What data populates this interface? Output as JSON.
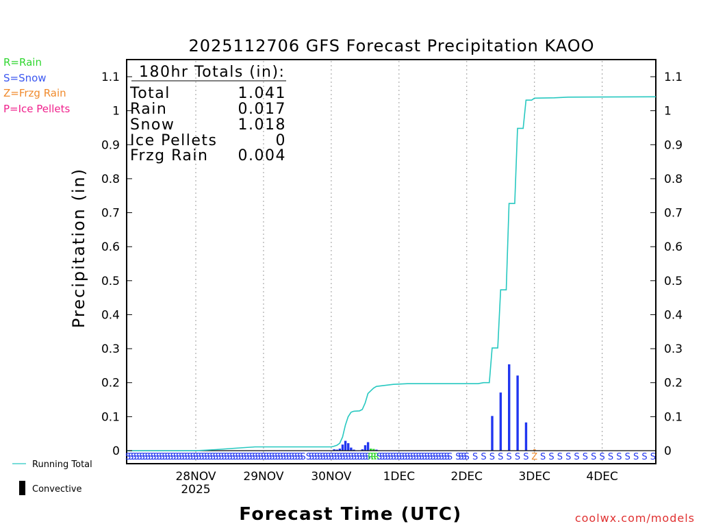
{
  "chart_data": {
    "type": "bar+line",
    "title": "2025112706 GFS Forecast Precipitation KAOO",
    "xlabel": "Forecast Time (UTC)",
    "ylabel": "Precipitation (in)",
    "ylim": [
      0,
      1.1
    ],
    "yticks": [
      0,
      0.1,
      0.2,
      0.3,
      0.4,
      0.5,
      0.6,
      0.7,
      0.8,
      0.9,
      1,
      1.1
    ],
    "ytick_labels": [
      "0",
      "0.1",
      "0.2",
      "0.3",
      "0.4",
      "0.5",
      "0.6",
      "0.7",
      "0.8",
      "0.9",
      "1",
      "1.1"
    ],
    "xlim_hours": [
      -6.5,
      181
    ],
    "grid_lines_hours": [
      18,
      42,
      66,
      90,
      114,
      138,
      162
    ],
    "x_ticks": [
      {
        "hour": 18,
        "label": "28NOV",
        "sublabel": "2025"
      },
      {
        "hour": 42,
        "label": "29NOV"
      },
      {
        "hour": 66,
        "label": "30NOV"
      },
      {
        "hour": 90,
        "label": "1DEC"
      },
      {
        "hour": 114,
        "label": "2DEC"
      },
      {
        "hour": 138,
        "label": "3DEC"
      },
      {
        "hour": 162,
        "label": "4DEC"
      }
    ],
    "bars": [
      {
        "hour": 67,
        "value": 0.004,
        "type": "snow"
      },
      {
        "hour": 68,
        "value": 0.003,
        "type": "snow"
      },
      {
        "hour": 69,
        "value": 0.006,
        "type": "snow"
      },
      {
        "hour": 70,
        "value": 0.018,
        "type": "snow"
      },
      {
        "hour": 71,
        "value": 0.029,
        "type": "snow"
      },
      {
        "hour": 72,
        "value": 0.022,
        "type": "snow"
      },
      {
        "hour": 73,
        "value": 0.009,
        "type": "snow"
      },
      {
        "hour": 74,
        "value": 0.003,
        "type": "snow"
      },
      {
        "hour": 77,
        "value": 0.004,
        "type": "snow"
      },
      {
        "hour": 78,
        "value": 0.016,
        "type": "snow"
      },
      {
        "hour": 79,
        "value": 0.025,
        "type": "snow"
      },
      {
        "hour": 80,
        "value": 0.006,
        "type": "rain"
      },
      {
        "hour": 81,
        "value": 0.005,
        "type": "rain"
      },
      {
        "hour": 82,
        "value": 0.003,
        "type": "snow"
      },
      {
        "hour": 123,
        "value": 0.102,
        "type": "snow"
      },
      {
        "hour": 126,
        "value": 0.171,
        "type": "snow"
      },
      {
        "hour": 129,
        "value": 0.254,
        "type": "snow"
      },
      {
        "hour": 132,
        "value": 0.221,
        "type": "snow"
      },
      {
        "hour": 135,
        "value": 0.083,
        "type": "snow"
      },
      {
        "hour": 138,
        "value": 0.004,
        "type": "frzg"
      }
    ],
    "running_total": [
      [
        -6.5,
        0
      ],
      [
        18,
        0
      ],
      [
        25,
        0.003
      ],
      [
        30,
        0.006
      ],
      [
        39,
        0.011
      ],
      [
        66,
        0.011
      ],
      [
        67,
        0.013
      ],
      [
        68,
        0.016
      ],
      [
        69,
        0.022
      ],
      [
        70,
        0.04
      ],
      [
        71,
        0.075
      ],
      [
        72,
        0.1
      ],
      [
        73,
        0.113
      ],
      [
        74,
        0.116
      ],
      [
        76,
        0.117
      ],
      [
        77,
        0.121
      ],
      [
        78,
        0.14
      ],
      [
        79,
        0.168
      ],
      [
        80,
        0.176
      ],
      [
        81,
        0.184
      ],
      [
        82,
        0.189
      ],
      [
        84,
        0.191
      ],
      [
        88,
        0.195
      ],
      [
        93,
        0.197
      ],
      [
        118,
        0.197
      ],
      [
        120,
        0.2
      ],
      [
        122,
        0.2
      ],
      [
        123,
        0.302
      ],
      [
        125,
        0.302
      ],
      [
        126,
        0.473
      ],
      [
        128,
        0.473
      ],
      [
        129,
        0.727
      ],
      [
        131,
        0.727
      ],
      [
        132,
        0.948
      ],
      [
        134,
        0.948
      ],
      [
        135,
        1.031
      ],
      [
        137,
        1.031
      ],
      [
        138,
        1.037
      ],
      [
        145,
        1.038
      ],
      [
        150,
        1.04
      ],
      [
        181,
        1.041
      ]
    ],
    "type_strip": [
      {
        "from": -6,
        "to": 38,
        "step": 1,
        "char": "S",
        "type": "snow"
      },
      {
        "from": 39,
        "to": 56,
        "step": 1,
        "char": "S",
        "type": "snow"
      },
      {
        "from": 58,
        "to": 59,
        "step": 1,
        "char": "S",
        "type": "snow"
      },
      {
        "from": 60,
        "to": 79,
        "step": 1,
        "char": "S",
        "type": "snow"
      },
      {
        "from": 80,
        "to": 82,
        "step": 1,
        "char": "R",
        "type": "rain"
      },
      {
        "from": 83,
        "to": 108,
        "step": 1,
        "char": "S",
        "type": "snow"
      },
      {
        "from": 111,
        "to": 114,
        "step": 1,
        "char": "S",
        "type": "snow"
      },
      {
        "from": 117,
        "to": 135,
        "step": 3,
        "char": "S",
        "type": "snow"
      },
      {
        "from": 138,
        "to": 138,
        "step": 1,
        "char": "Z",
        "type": "frzg"
      },
      {
        "from": 141,
        "to": 180,
        "step": 3,
        "char": "S",
        "type": "snow"
      }
    ],
    "totals_box": {
      "heading": "180hr Totals (in):",
      "rows": [
        {
          "label": "Total",
          "value": "1.041"
        },
        {
          "label": "Rain",
          "value": "0.017"
        },
        {
          "label": "Snow",
          "value": "1.018"
        },
        {
          "label": "Ice Pellets",
          "value": "0"
        },
        {
          "label": "Frzg Rain",
          "value": "0.004"
        }
      ]
    },
    "type_legend": [
      {
        "text": "R=Rain",
        "color": "#2fd62f"
      },
      {
        "text": "S=Snow",
        "color": "#3b57f0"
      },
      {
        "text": "Z=Frzg Rain",
        "color": "#f08a2c"
      },
      {
        "text": "P=Ice Pellets",
        "color": "#f0208c"
      }
    ],
    "series_legend": [
      {
        "text": "Running Total",
        "color": "#26c8c0"
      },
      {
        "text": "Convective",
        "color": "#000000"
      }
    ],
    "watermark": "coolwx.com/models"
  },
  "colors": {
    "snow": "#2136f0",
    "rain": "#2fd62f",
    "frzg": "#f08a2c",
    "ice": "#f0208c",
    "running_total": "#26c8c0",
    "watermark": "#e03030"
  }
}
